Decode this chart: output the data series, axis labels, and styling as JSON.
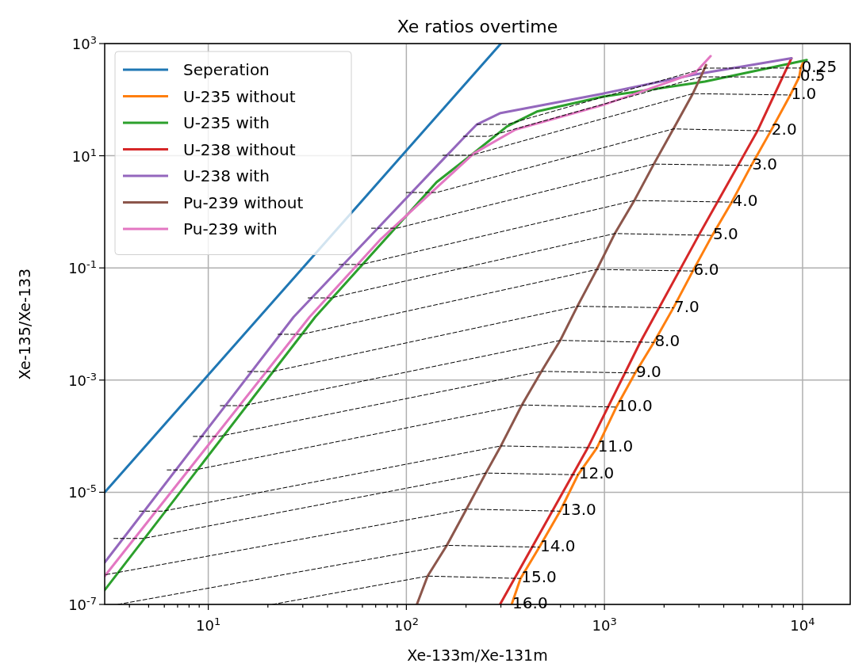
{
  "chart_data": {
    "type": "line",
    "title": "Xe ratios overtime",
    "xlabel": "Xe-133m/Xe-131m",
    "ylabel": "Xe-135/Xe-133",
    "log": "xy",
    "grid": true,
    "legend": "top left",
    "xlim": [
      3,
      17400
    ],
    "ylim": [
      1e-07,
      1000
    ],
    "xticks": [
      {
        "value": 4,
        "label": null
      },
      {
        "value": 5,
        "label": null
      },
      {
        "value": 6,
        "label": null
      },
      {
        "value": 7,
        "label": null
      },
      {
        "value": 8,
        "label": null
      },
      {
        "value": 9,
        "label": null
      },
      {
        "value": 10,
        "label": "10$^{1}$"
      },
      {
        "value": 20,
        "label": null
      },
      {
        "value": 30,
        "label": null
      },
      {
        "value": 40,
        "label": null
      },
      {
        "value": 50,
        "label": null
      },
      {
        "value": 60,
        "label": null
      },
      {
        "value": 70,
        "label": null
      },
      {
        "value": 80,
        "label": null
      },
      {
        "value": 90,
        "label": null
      },
      {
        "value": 100,
        "label": "10$^{2}$"
      },
      {
        "value": 200,
        "label": null
      },
      {
        "value": 300,
        "label": null
      },
      {
        "value": 400,
        "label": null
      },
      {
        "value": 500,
        "label": null
      },
      {
        "value": 600,
        "label": null
      },
      {
        "value": 700,
        "label": null
      },
      {
        "value": 800,
        "label": null
      },
      {
        "value": 900,
        "label": null
      },
      {
        "value": 1000,
        "label": "10$^{3}$"
      },
      {
        "value": 2000,
        "label": null
      },
      {
        "value": 3000,
        "label": null
      },
      {
        "value": 4000,
        "label": null
      },
      {
        "value": 5000,
        "label": null
      },
      {
        "value": 6000,
        "label": null
      },
      {
        "value": 7000,
        "label": null
      },
      {
        "value": 8000,
        "label": null
      },
      {
        "value": 9000,
        "label": null
      },
      {
        "value": 10000,
        "label": "10$^{4}$"
      }
    ],
    "yticks": [
      {
        "value": 1e-07,
        "label": "10$^{-7}$"
      },
      {
        "value": 1e-05,
        "label": "10$^{-5}$"
      },
      {
        "value": 0.001,
        "label": "10$^{-3}$"
      },
      {
        "value": 0.1,
        "label": "10$^{-1}$"
      },
      {
        "value": 10,
        "label": "10$^{1}$"
      },
      {
        "value": 1000,
        "label": "10$^{3}$"
      }
    ],
    "series": [
      {
        "name": "Seperation",
        "color": "#1f77b4",
        "x": [
          3,
          300
        ],
        "values": [
          1e-05,
          1000
        ]
      },
      {
        "name": "U-235 without",
        "color": "#ff7f0e",
        "x": [
          340,
          377,
          469,
          597,
          735,
          916,
          1148,
          1430,
          1775,
          2228,
          2793,
          3500,
          4390,
          5510,
          6910,
          8670,
          9620,
          9790,
          10100
        ],
        "values": [
          1e-07,
          2.9e-07,
          1.05e-06,
          4.6e-06,
          2.05e-05,
          6.2e-05,
          0.00033,
          0.00134,
          0.0047,
          0.0194,
          0.088,
          0.38,
          1.49,
          6.7,
          27.6,
          121,
          253,
          366,
          473
        ]
      },
      {
        "name": "U-235 with",
        "color": "#2ca02c",
        "x": [
          3,
          34.7,
          142,
          212,
          322,
          456,
          981,
          3210,
          10500
        ],
        "values": [
          1.8e-07,
          0.0134,
          3.37,
          10.2,
          33.2,
          61.4,
          113,
          210,
          510
        ]
      },
      {
        "name": "U-238 without",
        "color": "#d62728",
        "x": [
          297,
          824,
          1514,
          2990,
          5916,
          8790
        ],
        "values": [
          1e-07,
          6.2e-05,
          0.0047,
          0.38,
          27.6,
          548
        ]
      },
      {
        "name": "U-238 with",
        "color": "#9467bd",
        "x": [
          3,
          27,
          142,
          200,
          227,
          299,
          981,
          2793,
          8790
        ],
        "values": [
          5.6e-07,
          0.0134,
          6.5,
          23,
          36.2,
          57.7,
          128,
          276,
          548
        ]
      },
      {
        "name": "Pu-239 without",
        "color": "#8c564b",
        "x": [
          113,
          128,
          160,
          201,
          252,
          300,
          383,
          481,
          598,
          730,
          916,
          1128,
          1415,
          1775,
          2228,
          2793,
          3062,
          3258
        ],
        "values": [
          1e-07,
          3.2e-07,
          1.13e-06,
          5e-06,
          2.2e-05,
          6.7e-05,
          0.00036,
          0.00143,
          0.0051,
          0.0207,
          0.094,
          0.41,
          1.59,
          7.1,
          30.1,
          128,
          255,
          415
        ]
      },
      {
        "name": "Pu-239 with",
        "color": "#e377c2",
        "x": [
          3,
          32.5,
          74.5,
          219,
          356,
          981,
          2884,
          3436
        ],
        "values": [
          3.2e-07,
          0.0134,
          0.329,
          11,
          29.3,
          80,
          304,
          598
        ]
      },
      {
        "color": "#000000",
        "line_style": "dashed",
        "x": [
          227,
          322,
          3221,
          9790
        ],
        "values": [
          36.2,
          36.2,
          365,
          366
        ]
      },
      {
        "color": "#000000",
        "line_style": "dashed",
        "x": [
          194,
          261,
          3062,
          9620
        ],
        "values": [
          22.2,
          22.2,
          255,
          253
        ]
      },
      {
        "color": "#000000",
        "line_style": "dashed",
        "x": [
          152.8,
          213,
          2793,
          8670
        ],
        "values": [
          10.2,
          10.2,
          128,
          121
        ]
      },
      {
        "color": "#000000",
        "line_style": "dashed",
        "x": [
          100,
          142,
          2228,
          6910
        ],
        "values": [
          2.21,
          2.21,
          30.1,
          27.6
        ]
      },
      {
        "color": "#000000",
        "line_style": "dashed",
        "x": [
          66.7,
          89.5,
          1775,
          5510
        ],
        "values": [
          0.51,
          0.51,
          7.1,
          6.7
        ]
      },
      {
        "color": "#000000",
        "line_style": "dashed",
        "x": [
          45.7,
          59.2,
          1415,
          4390
        ],
        "values": [
          0.115,
          0.115,
          1.59,
          1.49
        ]
      },
      {
        "color": "#000000",
        "line_style": "dashed",
        "x": [
          31.9,
          41.7,
          1128,
          3500
        ],
        "values": [
          0.0292,
          0.0292,
          0.41,
          0.38
        ]
      },
      {
        "color": "#000000",
        "line_style": "dashed",
        "x": [
          22.5,
          29.6,
          916,
          2793
        ],
        "values": [
          0.00655,
          0.00655,
          0.094,
          0.088
        ]
      },
      {
        "color": "#000000",
        "line_style": "dashed",
        "x": [
          15.8,
          21.1,
          730,
          2228
        ],
        "values": [
          0.00142,
          0.00142,
          0.0207,
          0.0194
        ]
      },
      {
        "color": "#000000",
        "line_style": "dashed",
        "x": [
          11.5,
          15.1,
          598,
          1775
        ],
        "values": [
          0.00035,
          0.00035,
          0.0051,
          0.0047
        ]
      },
      {
        "color": "#000000",
        "line_style": "dashed",
        "x": [
          8.4,
          11.3,
          481,
          1430
        ],
        "values": [
          9.9e-05,
          9.9e-05,
          0.00143,
          0.00134
        ]
      },
      {
        "color": "#000000",
        "line_style": "dashed",
        "x": [
          6.2,
          8.55,
          383,
          1148
        ],
        "values": [
          2.5e-05,
          2.5e-05,
          0.00036,
          0.00033
        ]
      },
      {
        "color": "#000000",
        "line_style": "dashed",
        "x": [
          4.49,
          5.91,
          300,
          916
        ],
        "values": [
          4.6e-06,
          4.6e-06,
          6.7e-05,
          6.2e-05
        ]
      },
      {
        "color": "#000000",
        "line_style": "dashed",
        "x": [
          3.34,
          4.7,
          252,
          735
        ],
        "values": [
          1.5e-06,
          1.5e-06,
          2.2e-05,
          2.05e-05
        ]
      },
      {
        "color": "#000000",
        "line_style": "dashed",
        "x": [
          3.05,
          201,
          597
        ],
        "values": [
          3.4e-07,
          5e-06,
          4.6e-06
        ]
      },
      {
        "color": "#000000",
        "line_style": "dashed",
        "x": [
          3.5,
          160,
          469
        ],
        "values": [
          1e-07,
          1.13e-06,
          1.05e-06
        ]
      },
      {
        "color": "#000000",
        "line_style": "dashed",
        "x": [
          21.1,
          128,
          377
        ],
        "values": [
          1e-07,
          3.2e-07,
          2.9e-07
        ]
      }
    ],
    "annotations": [
      {
        "text": "0.25",
        "x": 9790,
        "y": 366
      },
      {
        "text": "0.5",
        "x": 9620,
        "y": 253
      },
      {
        "text": "1.0",
        "x": 8670,
        "y": 121
      },
      {
        "text": "2.0",
        "x": 6910,
        "y": 27.6
      },
      {
        "text": "3.0",
        "x": 5510,
        "y": 6.7
      },
      {
        "text": "4.0",
        "x": 4390,
        "y": 1.49
      },
      {
        "text": "5.0",
        "x": 3500,
        "y": 0.38
      },
      {
        "text": "6.0",
        "x": 2793,
        "y": 0.088
      },
      {
        "text": "7.0",
        "x": 2228,
        "y": 0.0194
      },
      {
        "text": "8.0",
        "x": 1775,
        "y": 0.0047
      },
      {
        "text": "9.0",
        "x": 1430,
        "y": 0.00134
      },
      {
        "text": "10.0",
        "x": 1148,
        "y": 0.00033
      },
      {
        "text": "11.0",
        "x": 916,
        "y": 6.2e-05
      },
      {
        "text": "12.0",
        "x": 735,
        "y": 2.05e-05
      },
      {
        "text": "13.0",
        "x": 597,
        "y": 4.6e-06
      },
      {
        "text": "14.0",
        "x": 469,
        "y": 1.05e-06
      },
      {
        "text": "15.0",
        "x": 377,
        "y": 2.9e-07
      },
      {
        "text": "16.0",
        "x": 340,
        "y": 1e-07
      }
    ]
  }
}
